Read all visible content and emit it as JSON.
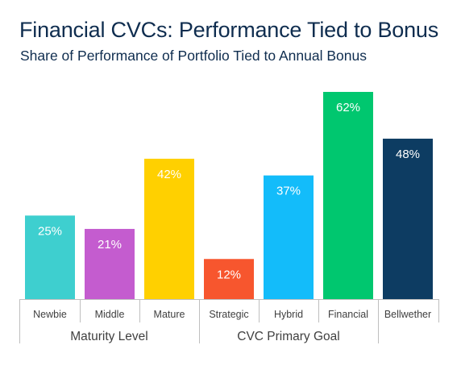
{
  "title": "Financial CVCs: Performance Tied to Bonus",
  "subtitle": "Share of Performance of Portfolio Tied to Annual Bonus",
  "chart_data": {
    "type": "bar",
    "categories": [
      "Newbie",
      "Middle",
      "Mature",
      "Strategic",
      "Hybrid",
      "Financial",
      "Bellwether"
    ],
    "values": [
      25,
      21,
      42,
      12,
      37,
      62,
      48
    ],
    "value_labels": [
      "25%",
      "21%",
      "42%",
      "12%",
      "37%",
      "62%",
      "48%"
    ],
    "colors": [
      "#3ecfcf",
      "#c45ccf",
      "#ffd000",
      "#f7562e",
      "#13bcfa",
      "#00c76f",
      "#0d3c62"
    ],
    "groups": [
      {
        "label": "Maturity Level",
        "categories": [
          "Newbie",
          "Middle",
          "Mature"
        ]
      },
      {
        "label": "CVC Primary Goal",
        "categories": [
          "Strategic",
          "Hybrid",
          "Financial"
        ]
      }
    ],
    "ylim": [
      0,
      62
    ],
    "grid": false,
    "legend": "none"
  }
}
